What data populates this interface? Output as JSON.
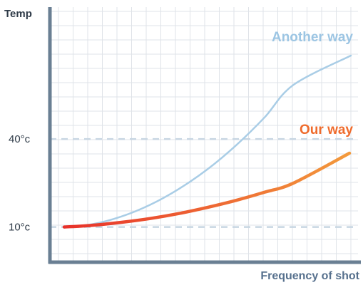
{
  "chart_data": {
    "type": "line",
    "title": "",
    "ylabel": "Temp",
    "xlabel": "Frequency of shot",
    "y_ticks": [
      {
        "value": 40,
        "label": "40°c"
      },
      {
        "value": 10,
        "label": "10°c"
      }
    ],
    "ylim": [
      -2,
      85
    ],
    "xlim": [
      0,
      10
    ],
    "grid": true,
    "series": [
      {
        "name": "Another way",
        "color": "#a9cde6",
        "x": [
          0,
          1,
          2,
          3,
          4,
          5,
          6,
          7,
          8,
          9,
          10
        ],
        "y": [
          10,
          11,
          13.6,
          17.6,
          23,
          29.7,
          37.9,
          47.5,
          58.5,
          70.8,
          70.8
        ]
      },
      {
        "name": "Our way",
        "color": "#f39a3c",
        "color_start": "#e8312a",
        "x": [
          0,
          1,
          2,
          3,
          4,
          5,
          6,
          7,
          8,
          9,
          10
        ],
        "y": [
          10,
          10.6,
          11.6,
          12.9,
          14.6,
          16.7,
          19.1,
          21.9,
          25,
          28.5,
          34.5
        ]
      }
    ]
  },
  "colors": {
    "axis": "#6a7f93",
    "grid": "#dfe3e8",
    "ref_dash": "#c8d6e2",
    "axis_label": "#56708d"
  }
}
